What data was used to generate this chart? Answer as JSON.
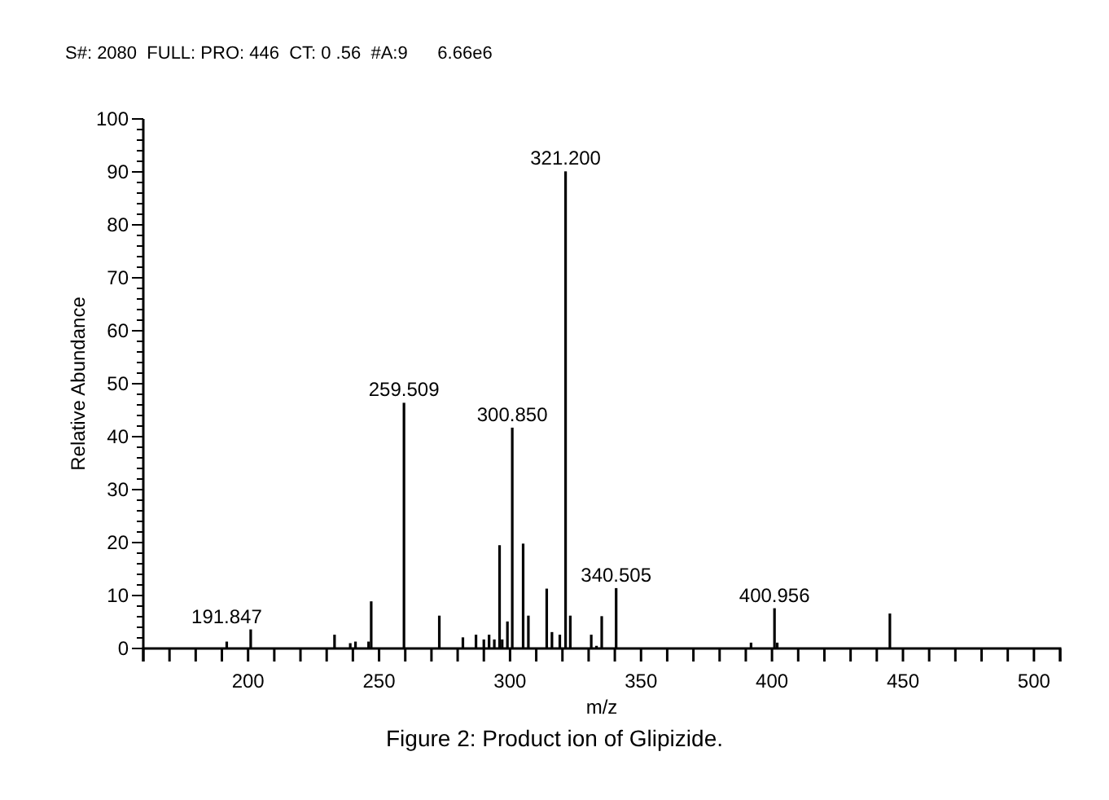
{
  "chart_data": {
    "type": "bar",
    "title": "S#: 2080  FULL: PRO: 446  CT: 0 .56  #A:9      6.66e6",
    "xlabel": "m/z",
    "ylabel": "Relative Abundance",
    "x": [
      191.847,
      201,
      233,
      239,
      241,
      246,
      247,
      259.509,
      273,
      282,
      287,
      290,
      292,
      294,
      296,
      297,
      299,
      300.85,
      305,
      307,
      314,
      316,
      319,
      321.2,
      323,
      331,
      333,
      335,
      340.505,
      392,
      400.956,
      402,
      445
    ],
    "values": [
      1.3,
      3.6,
      2.6,
      1.0,
      1.3,
      1.3,
      8.9,
      46.4,
      6.2,
      2.1,
      2.6,
      1.7,
      2.6,
      1.7,
      19.5,
      1.7,
      5.1,
      41.7,
      19.8,
      6.2,
      11.3,
      3.1,
      2.6,
      90.1,
      6.2,
      2.6,
      0.5,
      6.1,
      11.4,
      1.1,
      7.6,
      1.1,
      6.6
    ],
    "color": "#000000",
    "xlim": [
      160,
      510
    ],
    "xticks": [
      {
        "value": 160,
        "label": null
      },
      {
        "value": 170,
        "label": null
      },
      {
        "value": 180,
        "label": null
      },
      {
        "value": 190,
        "label": null
      },
      200,
      {
        "value": 210,
        "label": null
      },
      {
        "value": 220,
        "label": null
      },
      {
        "value": 230,
        "label": null
      },
      {
        "value": 240,
        "label": null
      },
      250,
      {
        "value": 260,
        "label": null
      },
      {
        "value": 270,
        "label": null
      },
      {
        "value": 280,
        "label": null
      },
      {
        "value": 290,
        "label": null
      },
      300,
      {
        "value": 310,
        "label": null
      },
      {
        "value": 320,
        "label": null
      },
      {
        "value": 330,
        "label": null
      },
      {
        "value": 340,
        "label": null
      },
      350,
      {
        "value": 360,
        "label": null
      },
      {
        "value": 370,
        "label": null
      },
      {
        "value": 380,
        "label": null
      },
      {
        "value": 390,
        "label": null
      },
      400,
      {
        "value": 410,
        "label": null
      },
      {
        "value": 420,
        "label": null
      },
      {
        "value": 430,
        "label": null
      },
      {
        "value": 440,
        "label": null
      },
      450,
      {
        "value": 460,
        "label": null
      },
      {
        "value": 470,
        "label": null
      },
      {
        "value": 480,
        "label": null
      },
      {
        "value": 490,
        "label": null
      },
      500,
      {
        "value": 510,
        "label": null
      }
    ],
    "ylim": [
      0,
      100
    ],
    "yticks": [
      0,
      {
        "value": 2,
        "label": null
      },
      {
        "value": 4,
        "label": null
      },
      {
        "value": 6,
        "label": null
      },
      {
        "value": 8,
        "label": null
      },
      10,
      {
        "value": 12,
        "label": null
      },
      {
        "value": 14,
        "label": null
      },
      {
        "value": 16,
        "label": null
      },
      {
        "value": 18,
        "label": null
      },
      20,
      {
        "value": 22,
        "label": null
      },
      {
        "value": 24,
        "label": null
      },
      {
        "value": 26,
        "label": null
      },
      {
        "value": 28,
        "label": null
      },
      30,
      {
        "value": 32,
        "label": null
      },
      {
        "value": 34,
        "label": null
      },
      {
        "value": 36,
        "label": null
      },
      {
        "value": 38,
        "label": null
      },
      40,
      {
        "value": 42,
        "label": null
      },
      {
        "value": 44,
        "label": null
      },
      {
        "value": 46,
        "label": null
      },
      {
        "value": 48,
        "label": null
      },
      50,
      {
        "value": 52,
        "label": null
      },
      {
        "value": 54,
        "label": null
      },
      {
        "value": 56,
        "label": null
      },
      {
        "value": 58,
        "label": null
      },
      60,
      {
        "value": 62,
        "label": null
      },
      {
        "value": 64,
        "label": null
      },
      {
        "value": 66,
        "label": null
      },
      {
        "value": 68,
        "label": null
      },
      70,
      {
        "value": 72,
        "label": null
      },
      {
        "value": 74,
        "label": null
      },
      {
        "value": 76,
        "label": null
      },
      {
        "value": 78,
        "label": null
      },
      80,
      {
        "value": 82,
        "label": null
      },
      {
        "value": 84,
        "label": null
      },
      {
        "value": 86,
        "label": null
      },
      {
        "value": 88,
        "label": null
      },
      90,
      {
        "value": 92,
        "label": null
      },
      {
        "value": 94,
        "label": null
      },
      {
        "value": 96,
        "label": null
      },
      {
        "value": 98,
        "label": null
      },
      100
    ],
    "grid": false,
    "annotations": [
      {
        "text": "191.847",
        "x": 191.847,
        "y": 1.3
      },
      {
        "text": "259.509",
        "x": 259.509,
        "y": 46.4
      },
      {
        "text": "300.850",
        "x": 300.85,
        "y": 41.7
      },
      {
        "text": "321.200",
        "x": 321.2,
        "y": 90.1
      },
      {
        "text": "340.505",
        "x": 340.505,
        "y": 11.4
      },
      {
        "text": "400.956",
        "x": 400.956,
        "y": 7.6
      },
      "Figure 2: Product ion of Glipizide."
    ]
  }
}
